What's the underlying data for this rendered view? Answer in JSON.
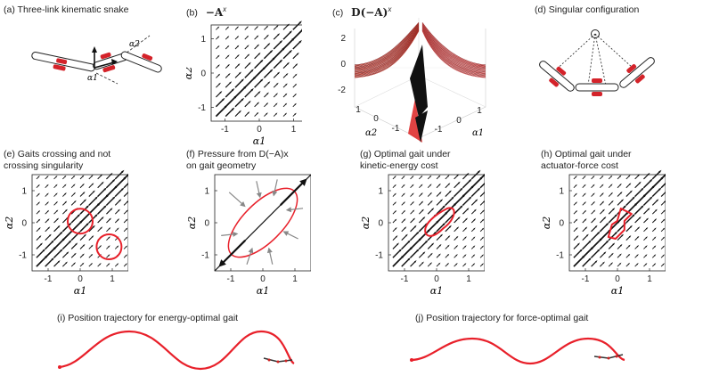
{
  "panels": {
    "a": {
      "caption": "(a) Three-link kinematic snake",
      "alpha1": "α1",
      "alpha2": "α2"
    },
    "b": {
      "caption": "(b)",
      "math": "−A",
      "sup": "x"
    },
    "c": {
      "caption": "(c)",
      "math": "D(−A)",
      "sup": "x",
      "zticks": [
        "2",
        "0",
        "-2"
      ],
      "xticks": [
        "-1",
        "0",
        "1"
      ],
      "yticks": [
        "1",
        "0",
        "-1"
      ]
    },
    "d": {
      "caption": "(d) Singular configuration"
    },
    "e": {
      "caption1": "(e) Gaits crossing and not",
      "caption2": "crossing singularity"
    },
    "f": {
      "caption1": "(f) Pressure from D(−A)x",
      "caption2": "on gait geometry"
    },
    "g": {
      "caption1": "(g) Optimal gait under",
      "caption2": "kinetic-energy cost"
    },
    "h": {
      "caption1": "(h) Optimal gait under",
      "caption2": "actuator-force cost"
    },
    "i": {
      "caption": "(i) Position trajectory for energy-optimal gait"
    },
    "j": {
      "caption": "(j) Position trajectory for force-optimal gait"
    }
  },
  "axes": {
    "xlabel": "α1",
    "ylabel": "α2",
    "xticks": [
      "-1",
      "0",
      "1"
    ],
    "yticks": [
      "1",
      "0",
      "-1"
    ]
  },
  "colors": {
    "gait": "#e8202a",
    "arrow": "#111111",
    "pressure": "#888888",
    "link_fill": "#ffffff",
    "motor": "#d4232a"
  }
}
